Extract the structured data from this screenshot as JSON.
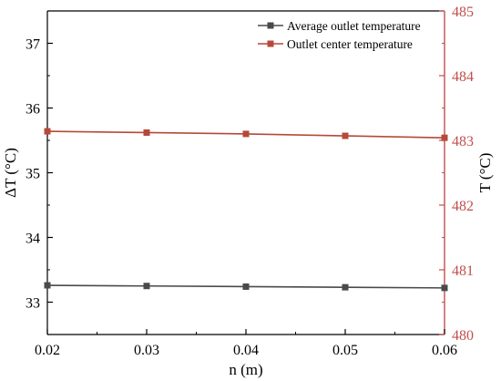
{
  "chart_data": {
    "type": "line",
    "title": "",
    "xlabel": "n (m)",
    "ylabel_left": "ΔT (°C)",
    "ylabel_right": "T (°C)",
    "x": [
      0.02,
      0.03,
      0.04,
      0.05,
      0.06
    ],
    "x_ticks": [
      "0.02",
      "0.03",
      "0.04",
      "0.05",
      "0.06"
    ],
    "xlim": [
      0.02,
      0.06
    ],
    "ylim_left": [
      32.5,
      37.5
    ],
    "y_left_ticks": [
      "33",
      "34",
      "35",
      "36",
      "37"
    ],
    "ylim_right": [
      480,
      485
    ],
    "y_right_ticks": [
      "480",
      "481",
      "482",
      "483",
      "484",
      "485"
    ],
    "grid": false,
    "legend_position": "top-right",
    "series": [
      {
        "name": "Average outlet temperature",
        "axis": "left",
        "color": "#4a4a4a",
        "marker": "square",
        "values": [
          33.26,
          33.25,
          33.24,
          33.23,
          33.22
        ]
      },
      {
        "name": "Outlet center temperature",
        "axis": "right",
        "color": "#b5493a",
        "marker": "square",
        "values": [
          483.14,
          483.12,
          483.1,
          483.07,
          483.04
        ]
      }
    ],
    "right_axis_color": "#c0504d"
  }
}
